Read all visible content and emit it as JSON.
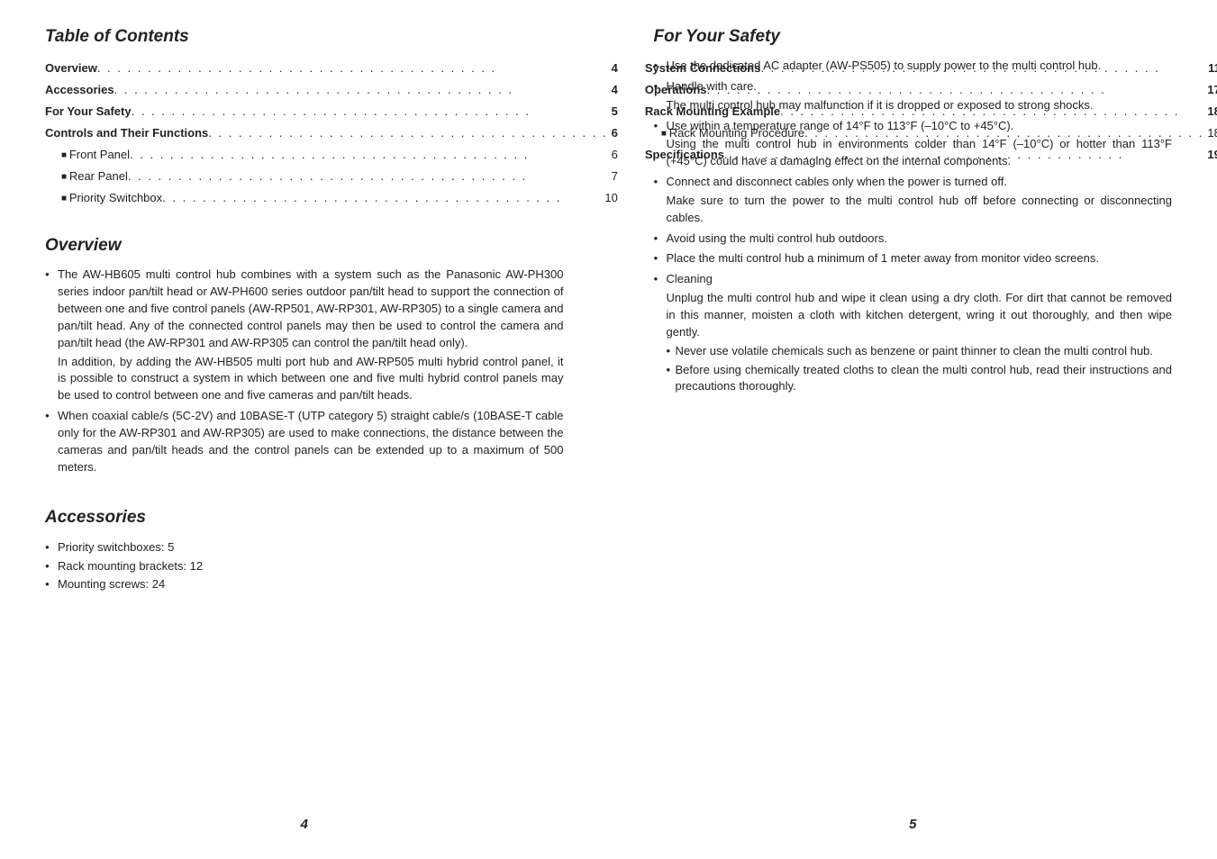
{
  "leftPage": {
    "title_toc": "Table of Contents",
    "toc_col1": [
      {
        "label": "Overview",
        "page": "4",
        "bold": true,
        "sub": false
      },
      {
        "label": "Accessories",
        "page": "4",
        "bold": true,
        "sub": false
      },
      {
        "label": "For Your Safety",
        "page": "5",
        "bold": true,
        "sub": false
      },
      {
        "label": "Controls and Their Functions",
        "page": "6",
        "bold": true,
        "sub": false
      },
      {
        "label": "Front Panel",
        "page": "6",
        "bold": false,
        "sub": true
      },
      {
        "label": "Rear Panel",
        "page": "7",
        "bold": false,
        "sub": true
      },
      {
        "label": "Priority Switchbox",
        "page": "10",
        "bold": false,
        "sub": true
      }
    ],
    "toc_col2": [
      {
        "label": "System Connections",
        "page": "11",
        "bold": true,
        "sub": false
      },
      {
        "label": "Operations",
        "page": "17",
        "bold": true,
        "sub": false
      },
      {
        "label": "Rack Mounting Example",
        "page": "18",
        "bold": true,
        "sub": false
      },
      {
        "label": "Rack Mounting Procedure",
        "page": "18",
        "bold": false,
        "sub": true
      },
      {
        "label": "Specifications",
        "page": "19",
        "bold": true,
        "sub": false
      }
    ],
    "title_overview": "Overview",
    "overview_items": [
      {
        "paras": [
          "The AW-HB605 multi control hub combines with a system such as the Panasonic AW-PH300 series indoor pan/tilt head or AW-PH600 series outdoor pan/tilt head to support the connection of between one and five control panels (AW-RP501, AW-RP301, AW-RP305) to a single camera and pan/tilt head. Any of the connected control panels may then be used to control the camera and pan/tilt head (the AW-RP301 and AW-RP305 can control the pan/tilt head only).",
          "In addition, by adding the AW-HB505 multi port hub and AW-RP505 multi hybrid control panel, it is possible to construct a system in which between one and five multi hybrid control panels may be used to control between one and five cameras and pan/tilt heads."
        ]
      },
      {
        "paras": [
          "When coaxial cable/s (5C-2V) and 10BASE-T (UTP category 5) straight cable/s (10BASE-T cable only for the AW-RP301 and AW-RP305) are used to make connections, the distance between the cameras and pan/tilt heads and the control panels can be extended up to a maximum of 500 meters."
        ]
      }
    ],
    "title_accessories": "Accessories",
    "accessories": [
      "Priority switchboxes: 5",
      "Rack mounting brackets: 12",
      "Mounting screws: 24"
    ],
    "page_number": "4"
  },
  "rightPage": {
    "title_safety": "For Your Safety",
    "safety_items": [
      {
        "paras": [
          "Use the dedicated AC adapter (AW-PS505) to supply power to the multi control hub."
        ]
      },
      {
        "paras": [
          "Handle with care.",
          "The multi control hub may malfunction if it is dropped or exposed to strong shocks."
        ]
      },
      {
        "paras": [
          "Use within a temperature range of 14°F to 113°F (–10°C to +45°C).",
          "Using the multi control hub in environments colder than 14°F (–10°C) or hotter than 113°F (+45°C) could have a damaging effect on the internal components."
        ]
      },
      {
        "paras": [
          "Connect and disconnect cables only when the power is turned off.",
          "Make sure to turn the power to the multi control hub off before connecting or disconnecting cables."
        ]
      },
      {
        "paras": [
          "Avoid using the multi control hub outdoors."
        ]
      },
      {
        "paras": [
          "Place the multi control hub a minimum of 1 meter away from monitor video screens."
        ]
      },
      {
        "paras": [
          "Cleaning",
          "Unplug the multi control hub and wipe it clean using a dry cloth. For dirt that cannot be removed in this manner, moisten a cloth with kitchen detergent, wring it out thoroughly, and then wipe gently."
        ],
        "subs": [
          "Never use volatile chemicals such as benzene or paint thinner to clean the multi control hub.",
          "Before using chemically treated cloths to clean the multi control hub, read their instructions and precautions thoroughly."
        ]
      }
    ],
    "page_number": "5"
  },
  "style": {
    "text_color": "#222222",
    "bg_color": "#ffffff",
    "title_fontsize": 19,
    "body_fontsize": 13
  }
}
